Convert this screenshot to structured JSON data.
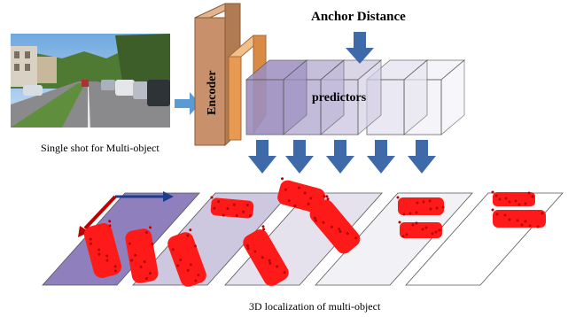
{
  "labels": {
    "anchor_distance": "Anchor Distance",
    "encoder": "Encoder",
    "predictors": "predictors",
    "input_caption": "Single shot for Multi-object",
    "output_caption": "3D localization of multi-object"
  },
  "colors": {
    "encoder_front": "#c8916b",
    "encoder_side": "#e2b48f",
    "encoder_layer2": "#e89a52",
    "predictor_tint": [
      "#9d8fc0",
      "#bcb4d6",
      "#d4cfe5",
      "#e8e6f1",
      "#f4f3f8"
    ],
    "arrow_blue": "#3f6aaa",
    "input_arrow": "#5b9bd5",
    "plane_tint": [
      "#8f7fbd",
      "#cdc7e0",
      "#e5e2ee",
      "#f2f1f6",
      "#ffffff"
    ],
    "car_red": "#ff1a1a",
    "axis_red": "#c00000",
    "axis_blue": "#1f3d8c"
  },
  "icons": [
    "street-photo",
    "down-arrow-icon",
    "right-arrow-icon",
    "car-point-cloud"
  ]
}
